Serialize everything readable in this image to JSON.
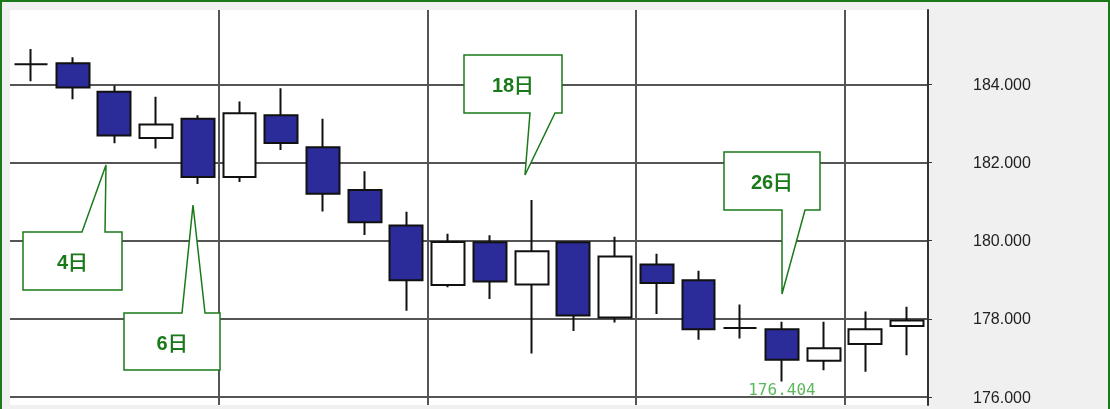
{
  "chart_data": {
    "type": "candlestick",
    "categories": [
      null,
      null,
      null,
      null,
      null,
      null,
      null,
      null,
      null,
      null,
      null,
      null,
      null,
      null,
      null,
      null,
      null,
      null,
      null,
      null,
      null,
      null
    ],
    "ohlc": [
      [
        184.51,
        184.9,
        184.08,
        184.51
      ],
      [
        184.54,
        184.69,
        183.62,
        183.92
      ],
      [
        183.81,
        183.97,
        182.49,
        182.69
      ],
      [
        182.63,
        183.68,
        182.36,
        182.97
      ],
      [
        183.12,
        183.21,
        181.45,
        181.63
      ],
      [
        181.63,
        183.56,
        181.5,
        183.26
      ],
      [
        183.21,
        183.9,
        182.32,
        182.5
      ],
      [
        182.39,
        183.12,
        180.75,
        181.2
      ],
      [
        181.3,
        181.78,
        180.15,
        180.47
      ],
      [
        180.39,
        180.74,
        178.21,
        178.99
      ],
      [
        178.87,
        180.18,
        178.81,
        179.97
      ],
      [
        179.96,
        180.14,
        178.51,
        178.96
      ],
      [
        178.88,
        181.04,
        177.12,
        179.73
      ],
      [
        179.96,
        179.96,
        177.69,
        178.09
      ],
      [
        178.04,
        180.1,
        177.91,
        179.6
      ],
      [
        179.39,
        179.67,
        178.13,
        178.92
      ],
      [
        178.99,
        179.23,
        177.47,
        177.74
      ],
      [
        177.77,
        178.37,
        177.5,
        177.77
      ],
      [
        177.74,
        177.93,
        176.404,
        176.96
      ],
      [
        176.93,
        177.93,
        176.69,
        177.25
      ],
      [
        177.36,
        178.19,
        176.65,
        177.74
      ],
      [
        177.82,
        178.31,
        177.07,
        177.96
      ]
    ],
    "colors": [
      "#111111",
      "#2b2b99",
      "#2b2b99",
      "#ffffff",
      "#2b2b99",
      "#ffffff",
      "#2b2b99",
      "#2b2b99",
      "#2b2b99",
      "#2b2b99",
      "#ffffff",
      "#2b2b99",
      "#ffffff",
      "#2b2b99",
      "#ffffff",
      "#2b2b99",
      "#2b2b99",
      "#111111",
      "#2b2b99",
      "#ffffff",
      "#ffffff",
      "#ffffff"
    ],
    "ylim": [
      175.8,
      185.9
    ],
    "yticks": [
      {
        "value": 176,
        "label": "176.000"
      },
      {
        "value": 178,
        "label": "178.000"
      },
      {
        "value": 180,
        "label": "180.000"
      },
      {
        "value": 182,
        "label": "182.000"
      },
      {
        "value": 184,
        "label": "184.000"
      }
    ],
    "grid": true,
    "annotations": [
      "4日",
      "6日",
      "18日",
      "26日",
      {
        "text": "176.404",
        "y": 176.404
      }
    ]
  }
}
